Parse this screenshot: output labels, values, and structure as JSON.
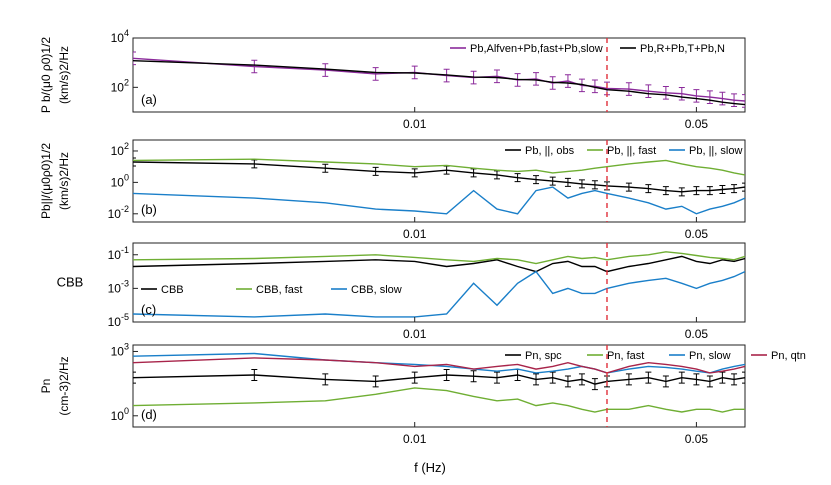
{
  "figure": {
    "xlabel": "f  (Hz)",
    "x_ticks": [
      "0.01",
      "0.05"
    ],
    "vline_color": "#e0303a"
  },
  "chart_data": [
    {
      "type": "line",
      "panel": "(a)",
      "ylabel_line1": "P  b/(μ0 ρ0)1/2",
      "ylabel_line2": "(km/s)2/Hz",
      "y_scale": "log",
      "ylim": [
        10,
        10000
      ],
      "y_ticks": [
        "10^2",
        "10^4"
      ],
      "xlim": [
        0.002,
        0.066
      ],
      "vline_x": 0.03,
      "legend_placement": "top-right",
      "series": [
        {
          "name": "Pb,Alfven+Pb,fast+Pb,slow",
          "color": "#8b2a9b",
          "errorbars": true,
          "x": [
            0.002,
            0.004,
            0.006,
            0.008,
            0.01,
            0.012,
            0.014,
            0.016,
            0.018,
            0.02,
            0.022,
            0.024,
            0.026,
            0.028,
            0.03,
            0.034,
            0.038,
            0.042,
            0.046,
            0.05,
            0.054,
            0.058,
            0.062,
            0.066
          ],
          "values": [
            1500,
            700,
            500,
            350,
            400,
            300,
            250,
            280,
            200,
            220,
            150,
            180,
            120,
            110,
            90,
            85,
            70,
            60,
            55,
            45,
            40,
            35,
            30,
            28
          ]
        },
        {
          "name": "Pb,R+Pb,T+Pb,N",
          "color": "#000000",
          "errorbars": false,
          "x": [
            0.002,
            0.004,
            0.006,
            0.008,
            0.01,
            0.012,
            0.014,
            0.016,
            0.018,
            0.02,
            0.022,
            0.024,
            0.026,
            0.028,
            0.03,
            0.034,
            0.038,
            0.042,
            0.046,
            0.05,
            0.054,
            0.058,
            0.062,
            0.066
          ],
          "values": [
            1200,
            800,
            550,
            400,
            380,
            320,
            260,
            250,
            210,
            200,
            160,
            150,
            130,
            100,
            80,
            70,
            55,
            50,
            40,
            35,
            30,
            25,
            22,
            20
          ]
        }
      ]
    },
    {
      "type": "line",
      "panel": "(b)",
      "ylabel_line1": "Pb||/(μ0ρ0)1/2",
      "ylabel_line2": "(km/s)2/Hz",
      "y_scale": "log",
      "ylim": [
        0.003,
        500
      ],
      "y_ticks": [
        "10^2",
        "10^0",
        "10^-2"
      ],
      "xlim": [
        0.002,
        0.066
      ],
      "vline_x": 0.03,
      "legend_placement": "top-right",
      "series": [
        {
          "name": "Pb, ||, obs",
          "color": "#000000",
          "errorbars": true,
          "x": [
            0.002,
            0.004,
            0.006,
            0.008,
            0.01,
            0.012,
            0.014,
            0.016,
            0.018,
            0.02,
            0.022,
            0.024,
            0.026,
            0.028,
            0.03,
            0.034,
            0.038,
            0.042,
            0.046,
            0.05,
            0.054,
            0.058,
            0.062,
            0.066
          ],
          "values": [
            20,
            15,
            8,
            5,
            4,
            6,
            4,
            3,
            2,
            1.5,
            1.2,
            1,
            0.8,
            0.7,
            0.6,
            0.5,
            0.4,
            0.3,
            0.25,
            0.3,
            0.3,
            0.35,
            0.4,
            0.5
          ]
        },
        {
          "name": "Pb, ||, fast",
          "color": "#6fae33",
          "errorbars": false,
          "x": [
            0.002,
            0.004,
            0.006,
            0.008,
            0.01,
            0.012,
            0.014,
            0.016,
            0.018,
            0.02,
            0.022,
            0.024,
            0.026,
            0.028,
            0.03,
            0.034,
            0.038,
            0.042,
            0.046,
            0.05,
            0.054,
            0.058,
            0.062,
            0.066
          ],
          "values": [
            25,
            30,
            20,
            15,
            10,
            12,
            8,
            6,
            5,
            6,
            4,
            5,
            6,
            8,
            10,
            15,
            20,
            25,
            15,
            10,
            8,
            6,
            4,
            3
          ]
        },
        {
          "name": "Pb, ||, slow",
          "color": "#1a7fc9",
          "errorbars": false,
          "x": [
            0.002,
            0.004,
            0.006,
            0.008,
            0.01,
            0.012,
            0.014,
            0.016,
            0.018,
            0.02,
            0.022,
            0.024,
            0.026,
            0.028,
            0.03,
            0.034,
            0.038,
            0.042,
            0.046,
            0.05,
            0.054,
            0.058,
            0.062,
            0.066
          ],
          "values": [
            0.2,
            0.1,
            0.05,
            0.02,
            0.015,
            0.01,
            0.3,
            0.02,
            0.01,
            0.3,
            0.5,
            0.1,
            0.2,
            0.3,
            0.2,
            0.1,
            0.05,
            0.02,
            0.03,
            0.01,
            0.02,
            0.03,
            0.05,
            0.1
          ]
        }
      ]
    },
    {
      "type": "line",
      "panel": "(c)",
      "ylabel": "CBB",
      "y_scale": "log",
      "ylim": [
        1e-05,
        0.5
      ],
      "y_ticks": [
        "10^-1",
        "10^-3",
        "10^-5"
      ],
      "xlim": [
        0.002,
        0.066
      ],
      "vline_x": 0.03,
      "legend_placement": "center-left",
      "series": [
        {
          "name": "CBB",
          "color": "#000000",
          "x": [
            0.002,
            0.004,
            0.006,
            0.008,
            0.01,
            0.012,
            0.014,
            0.016,
            0.018,
            0.02,
            0.022,
            0.024,
            0.026,
            0.028,
            0.03,
            0.034,
            0.038,
            0.042,
            0.046,
            0.05,
            0.054,
            0.058,
            0.062,
            0.066
          ],
          "values": [
            0.02,
            0.03,
            0.04,
            0.05,
            0.04,
            0.02,
            0.03,
            0.05,
            0.02,
            0.01,
            0.03,
            0.04,
            0.02,
            0.02,
            0.01,
            0.02,
            0.03,
            0.05,
            0.08,
            0.04,
            0.03,
            0.05,
            0.04,
            0.06
          ]
        },
        {
          "name": "CBB, fast",
          "color": "#6fae33",
          "x": [
            0.002,
            0.004,
            0.006,
            0.008,
            0.01,
            0.012,
            0.014,
            0.016,
            0.018,
            0.02,
            0.022,
            0.024,
            0.026,
            0.028,
            0.03,
            0.034,
            0.038,
            0.042,
            0.046,
            0.05,
            0.054,
            0.058,
            0.062,
            0.066
          ],
          "values": [
            0.05,
            0.06,
            0.08,
            0.1,
            0.07,
            0.05,
            0.04,
            0.06,
            0.05,
            0.03,
            0.05,
            0.08,
            0.06,
            0.07,
            0.05,
            0.08,
            0.1,
            0.15,
            0.12,
            0.09,
            0.07,
            0.06,
            0.05,
            0.08
          ]
        },
        {
          "name": "CBB, slow",
          "color": "#1a7fc9",
          "x": [
            0.002,
            0.004,
            0.006,
            0.008,
            0.01,
            0.012,
            0.014,
            0.016,
            0.018,
            0.02,
            0.022,
            0.024,
            0.026,
            0.028,
            0.03,
            0.034,
            0.038,
            0.042,
            0.046,
            0.05,
            0.054,
            0.058,
            0.062,
            0.066
          ],
          "values": [
            3e-05,
            2e-05,
            3e-05,
            2e-05,
            2e-05,
            3e-05,
            0.002,
            0.0001,
            0.002,
            0.01,
            0.0005,
            0.001,
            0.0005,
            0.0005,
            0.001,
            0.002,
            0.003,
            0.004,
            0.002,
            0.001,
            0.002,
            0.003,
            0.005,
            0.01
          ]
        }
      ]
    },
    {
      "type": "line",
      "panel": "(d)",
      "ylabel_line1": "Pn",
      "ylabel_line2": "(cm-3)2/Hz",
      "y_scale": "log",
      "ylim": [
        0.3,
        2000
      ],
      "y_ticks": [
        "10^3",
        "10^0"
      ],
      "xlim": [
        0.002,
        0.066
      ],
      "vline_x": 0.03,
      "legend_placement": "top-right",
      "series": [
        {
          "name": "Pn, spc",
          "color": "#000000",
          "errorbars": true,
          "x": [
            0.002,
            0.004,
            0.006,
            0.008,
            0.01,
            0.012,
            0.014,
            0.016,
            0.018,
            0.02,
            0.022,
            0.024,
            0.026,
            0.028,
            0.03,
            0.034,
            0.038,
            0.042,
            0.046,
            0.05,
            0.054,
            0.058,
            0.062,
            0.066
          ],
          "values": [
            60,
            80,
            50,
            40,
            60,
            80,
            70,
            60,
            80,
            50,
            60,
            40,
            50,
            30,
            40,
            50,
            60,
            40,
            60,
            50,
            40,
            60,
            50,
            60
          ]
        },
        {
          "name": "Pn, fast",
          "color": "#6fae33",
          "x": [
            0.002,
            0.004,
            0.006,
            0.008,
            0.01,
            0.012,
            0.014,
            0.016,
            0.018,
            0.02,
            0.022,
            0.024,
            0.026,
            0.028,
            0.03,
            0.034,
            0.038,
            0.042,
            0.046,
            0.05,
            0.054,
            0.058,
            0.062,
            0.066
          ],
          "values": [
            3,
            4,
            5,
            10,
            20,
            15,
            8,
            5,
            6,
            3,
            4,
            3,
            2,
            1.5,
            2,
            2,
            3,
            2,
            1.5,
            2,
            2,
            1.5,
            2,
            2
          ]
        },
        {
          "name": "Pn, slow",
          "color": "#1a7fc9",
          "x": [
            0.002,
            0.004,
            0.006,
            0.008,
            0.01,
            0.012,
            0.014,
            0.016,
            0.018,
            0.02,
            0.022,
            0.024,
            0.026,
            0.028,
            0.03,
            0.034,
            0.038,
            0.042,
            0.046,
            0.05,
            0.054,
            0.058,
            0.062,
            0.066
          ],
          "values": [
            600,
            800,
            400,
            300,
            250,
            200,
            150,
            120,
            150,
            100,
            120,
            150,
            200,
            150,
            100,
            150,
            200,
            180,
            150,
            120,
            100,
            150,
            200,
            250
          ]
        },
        {
          "name": "Pn, qtn",
          "color": "#a8244a",
          "x": [
            0.002,
            0.004,
            0.006,
            0.008,
            0.01,
            0.012,
            0.014,
            0.016,
            0.018,
            0.02,
            0.022,
            0.024,
            0.026,
            0.028,
            0.03,
            0.034,
            0.038,
            0.042,
            0.046,
            0.05,
            0.054,
            0.058,
            0.062,
            0.066
          ],
          "values": [
            300,
            500,
            400,
            300,
            200,
            250,
            150,
            200,
            250,
            150,
            200,
            300,
            200,
            150,
            100,
            200,
            300,
            250,
            200,
            150,
            100,
            120,
            150,
            200
          ]
        }
      ]
    }
  ]
}
